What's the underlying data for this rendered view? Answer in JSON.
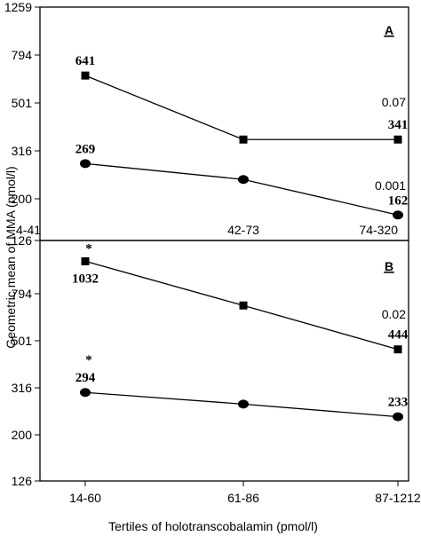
{
  "chart_data": [
    {
      "type": "line",
      "panel": "A",
      "ylabel": "Geometric mean of MMA (nmol/l)",
      "yscale": "log",
      "ylim": [
        126,
        1259
      ],
      "yticks": [
        "1259",
        "794",
        "501",
        "316",
        "200",
        "126"
      ],
      "categories": [
        "4-41",
        "42-73",
        "74-320"
      ],
      "series": [
        {
          "marker": "square",
          "values": [
            641,
            341,
            341
          ],
          "labels": [
            "641",
            "",
            "341"
          ],
          "pvalue": "0.07"
        },
        {
          "marker": "circle",
          "values": [
            269,
            230,
            162
          ],
          "labels": [
            "269",
            "",
            "162"
          ],
          "pvalue": "0.001"
        }
      ]
    },
    {
      "type": "line",
      "panel": "B",
      "ylabel": "Geometric mean of MMA (nmol/l)",
      "xlabel": "Tertiles of holotranscobalamin (pmol/l)",
      "yscale": "log",
      "ylim": [
        126,
        1259
      ],
      "yticks": [
        "794",
        "501",
        "316",
        "200",
        "126"
      ],
      "categories": [
        "14-60",
        "61-86",
        "87-1212"
      ],
      "series": [
        {
          "marker": "square",
          "values": [
            1032,
            676,
            444
          ],
          "labels": [
            "1032",
            "",
            "444"
          ],
          "stars": [
            "*",
            "",
            ""
          ],
          "pvalue": "0.02"
        },
        {
          "marker": "circle",
          "values": [
            294,
            263,
            233
          ],
          "labels": [
            "294",
            "",
            "233"
          ],
          "stars": [
            "*",
            "",
            ""
          ]
        }
      ]
    }
  ]
}
